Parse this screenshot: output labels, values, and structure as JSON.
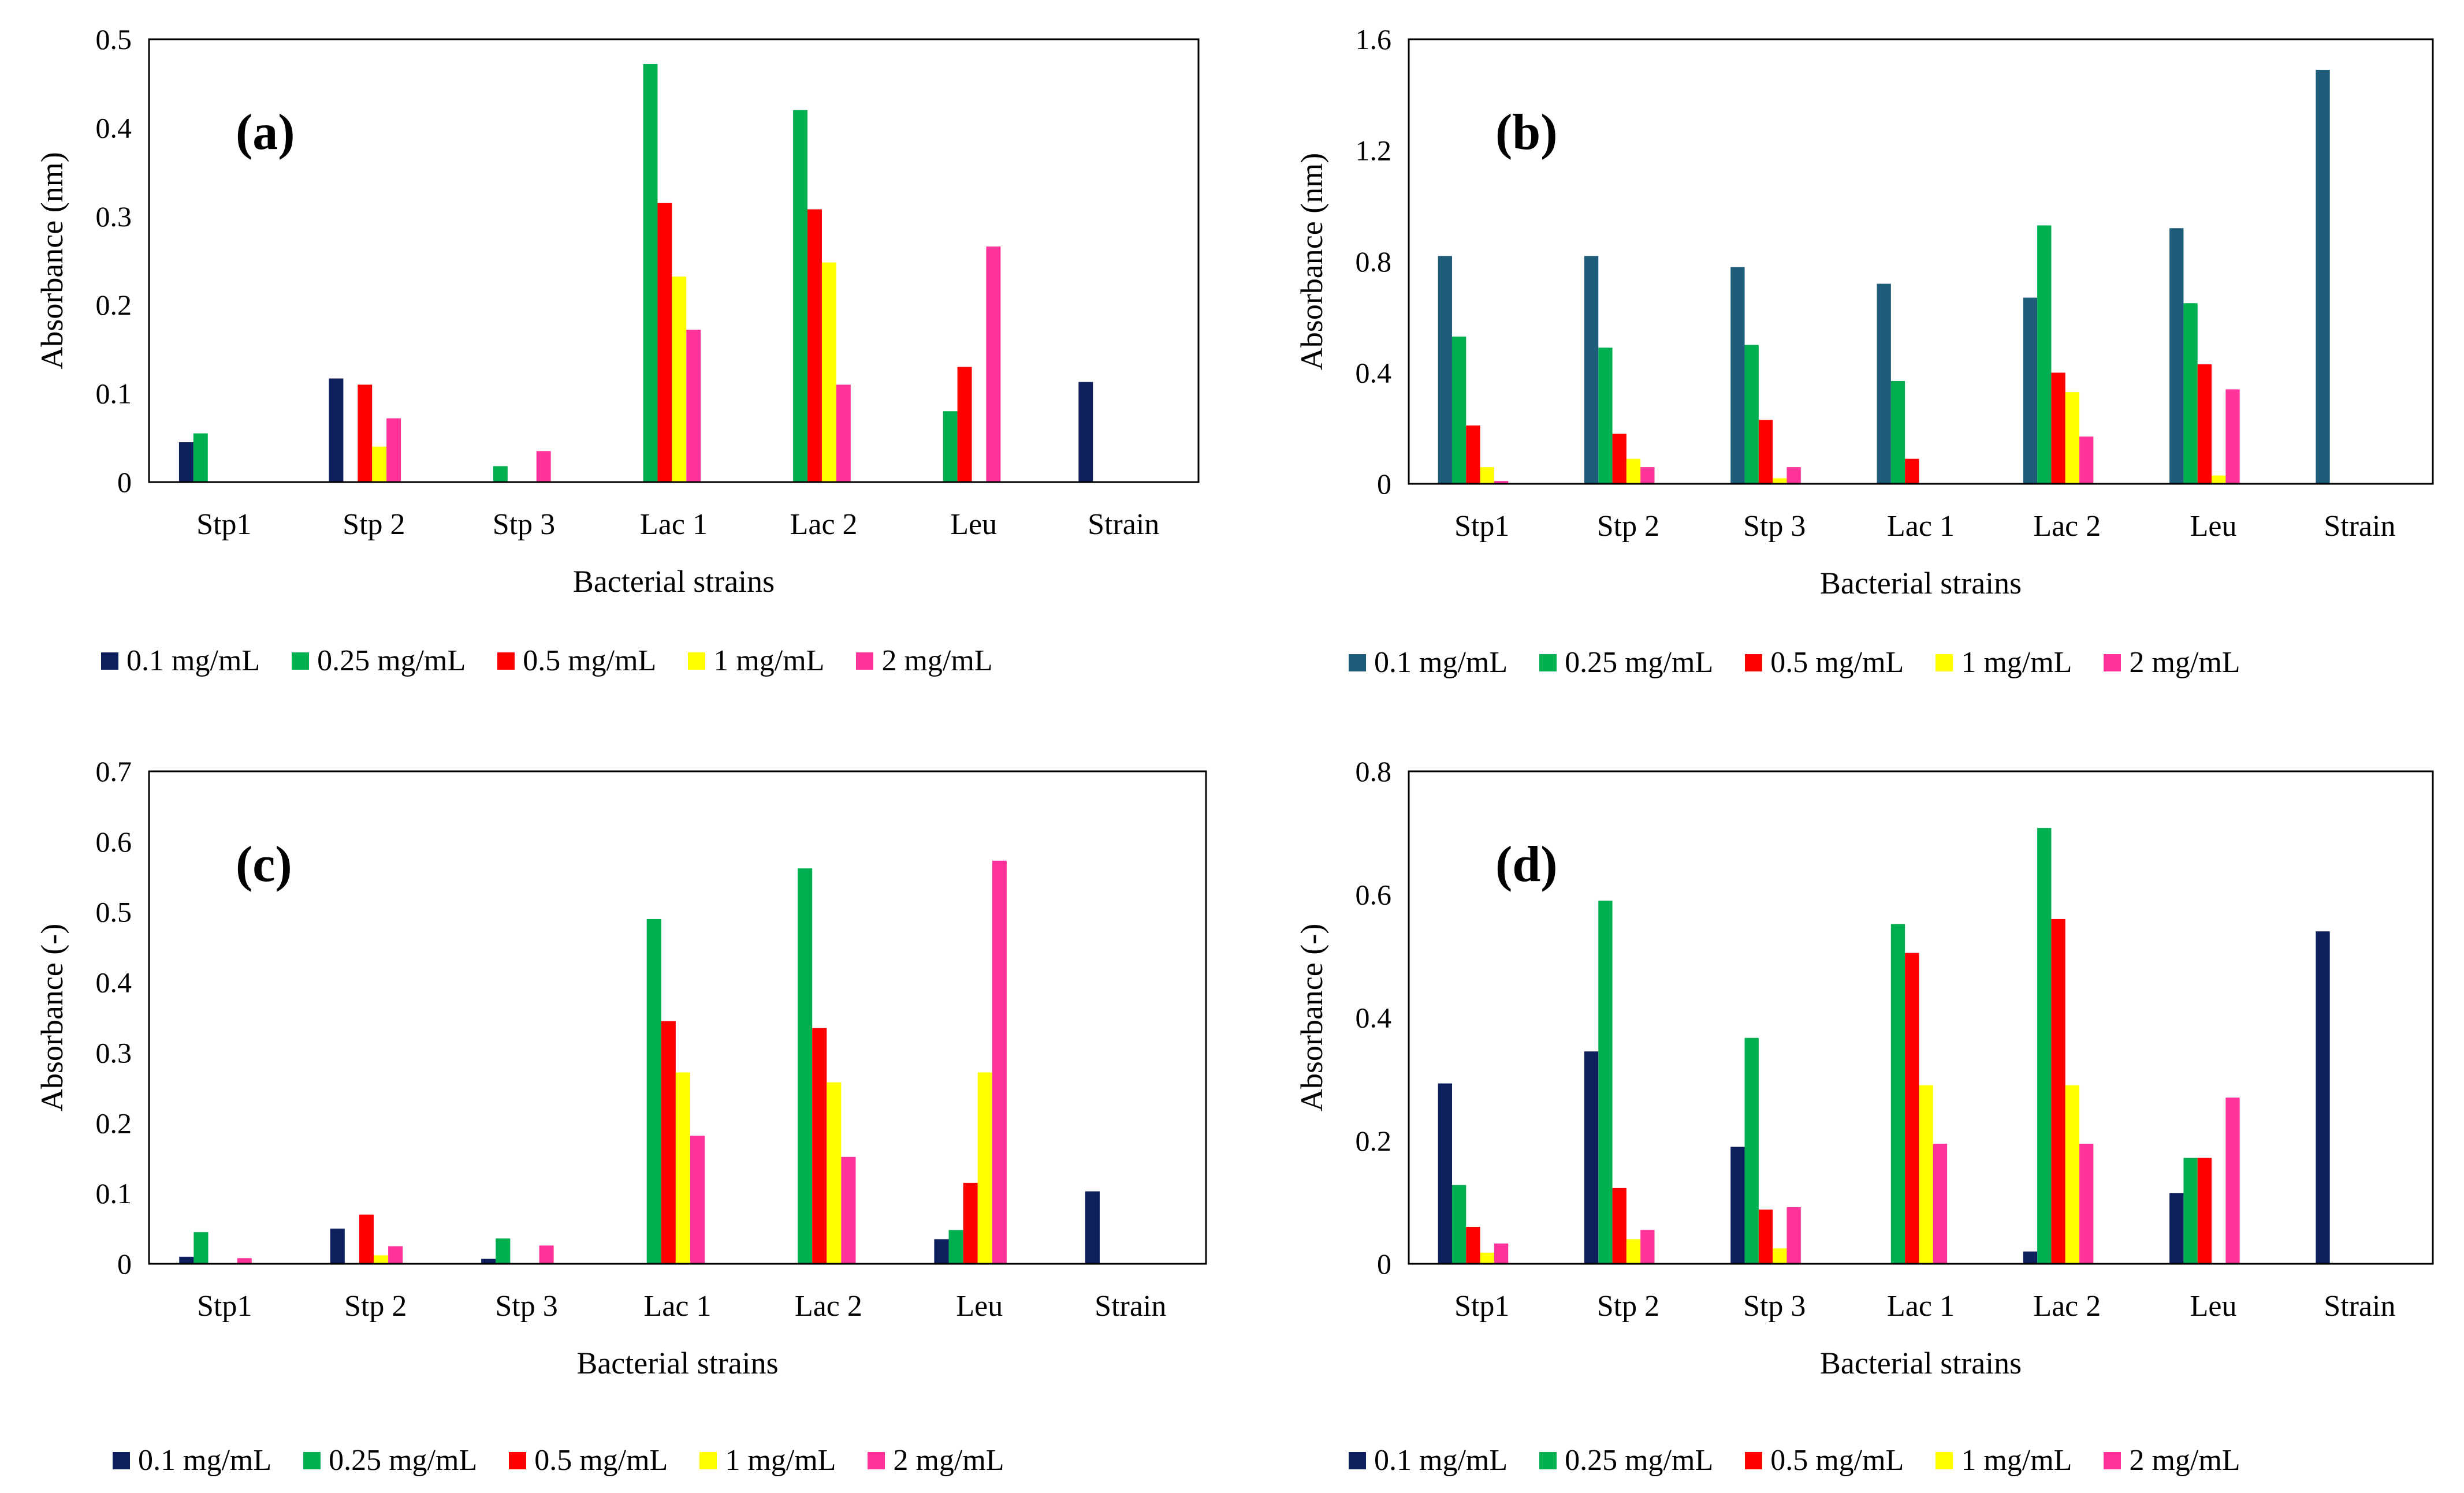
{
  "figure": {
    "chart_data": [
      {
        "id": "a",
        "type": "bar",
        "panel_label": "(a)",
        "xlabel": "Bacterial strains",
        "ylabel": "Absorbance (nm)",
        "ylim": [
          0,
          0.5
        ],
        "yticks": [
          0,
          0.1,
          0.2,
          0.3,
          0.4,
          0.5
        ],
        "ytick_labels": [
          "0",
          "0.1",
          "0.2",
          "0.3",
          "0.4",
          "0.5"
        ],
        "categories": [
          "Stp1",
          "Stp 2",
          "Stp 3",
          "Lac 1",
          "Lac 2",
          "Leu",
          "Strain"
        ],
        "series": [
          {
            "name": "0.1 mg/mL",
            "color": "#0d1f5c",
            "values": [
              0.045,
              0.117,
              0,
              0,
              0,
              0,
              0.113
            ]
          },
          {
            "name": "0.25 mg/mL",
            "color": "#00b050",
            "values": [
              0.055,
              0,
              0.018,
              0.472,
              0.42,
              0.08,
              0
            ]
          },
          {
            "name": "0.5 mg/mL",
            "color": "#ff0000",
            "values": [
              0,
              0.11,
              0,
              0.315,
              0.308,
              0.13,
              0
            ]
          },
          {
            "name": "1 mg/mL",
            "color": "#ffff00",
            "values": [
              0,
              0.04,
              0,
              0.232,
              0.248,
              0,
              0
            ]
          },
          {
            "name": "2 mg/mL",
            "color": "#ff3399",
            "values": [
              0,
              0.072,
              0.035,
              0.172,
              0.11,
              0.266,
              0
            ]
          }
        ]
      },
      {
        "id": "b",
        "type": "bar",
        "panel_label": "(b)",
        "xlabel": "Bacterial strains",
        "ylabel": "Absorbance (nm)",
        "ylim": [
          0,
          1.6
        ],
        "yticks": [
          0,
          0.4,
          0.8,
          1.2,
          1.6
        ],
        "ytick_labels": [
          "0",
          "0.4",
          "0.8",
          "1.2",
          "1.6"
        ],
        "categories": [
          "Stp1",
          "Stp 2",
          "Stp 3",
          "Lac 1",
          "Lac 2",
          "Leu",
          "Strain"
        ],
        "series": [
          {
            "name": "0.1 mg/mL",
            "color": "#1f5c7a",
            "values": [
              0.82,
              0.82,
              0.78,
              0.72,
              0.67,
              0.92,
              1.49
            ]
          },
          {
            "name": "0.25 mg/mL",
            "color": "#00b050",
            "values": [
              0.53,
              0.49,
              0.5,
              0.37,
              0.93,
              0.65,
              0
            ]
          },
          {
            "name": "0.5 mg/mL",
            "color": "#ff0000",
            "values": [
              0.21,
              0.18,
              0.23,
              0.09,
              0.4,
              0.43,
              0
            ]
          },
          {
            "name": "1 mg/mL",
            "color": "#ffff00",
            "values": [
              0.06,
              0.09,
              0.02,
              0,
              0.33,
              0.03,
              0
            ]
          },
          {
            "name": "2 mg/mL",
            "color": "#ff3399",
            "values": [
              0.01,
              0.06,
              0.06,
              0,
              0.17,
              0.34,
              0
            ]
          }
        ]
      },
      {
        "id": "c",
        "type": "bar",
        "panel_label": "(c)",
        "xlabel": "Bacterial strains",
        "ylabel": "Absorbance (-)",
        "ylim": [
          0,
          0.7
        ],
        "yticks": [
          0,
          0.1,
          0.2,
          0.3,
          0.4,
          0.5,
          0.6,
          0.7
        ],
        "ytick_labels": [
          "0",
          "0.1",
          "0.2",
          "0.3",
          "0.4",
          "0.5",
          "0.6",
          "0.7"
        ],
        "categories": [
          "Stp1",
          "Stp 2",
          "Stp 3",
          "Lac 1",
          "Lac 2",
          "Leu",
          "Strain"
        ],
        "series": [
          {
            "name": "0.1 mg/mL",
            "color": "#0d1f5c",
            "values": [
              0.01,
              0.05,
              0.007,
              0,
              0,
              0.035,
              0.103
            ]
          },
          {
            "name": "0.25 mg/mL",
            "color": "#00b050",
            "values": [
              0.045,
              0,
              0.036,
              0.49,
              0.562,
              0.048,
              0
            ]
          },
          {
            "name": "0.5 mg/mL",
            "color": "#ff0000",
            "values": [
              0,
              0.07,
              0,
              0.345,
              0.335,
              0.115,
              0
            ]
          },
          {
            "name": "1 mg/mL",
            "color": "#ffff00",
            "values": [
              0,
              0.012,
              0,
              0.272,
              0.258,
              0.272,
              0
            ]
          },
          {
            "name": "2 mg/mL",
            "color": "#ff3399",
            "values": [
              0.008,
              0.025,
              0.026,
              0.182,
              0.152,
              0.573,
              0
            ]
          }
        ]
      },
      {
        "id": "d",
        "type": "bar",
        "panel_label": "(d)",
        "xlabel": "Bacterial strains",
        "ylabel": "Absorbance (-)",
        "ylim": [
          0,
          0.8
        ],
        "yticks": [
          0,
          0.2,
          0.4,
          0.6,
          0.8
        ],
        "ytick_labels": [
          "0",
          "0.2",
          "0.4",
          "0.6",
          "0.8"
        ],
        "categories": [
          "Stp1",
          "Stp 2",
          "Stp 3",
          "Lac 1",
          "Lac 2",
          "Leu",
          "Strain"
        ],
        "series": [
          {
            "name": "0.1 mg/mL",
            "color": "#0d1f5c",
            "values": [
              0.293,
              0.345,
              0.19,
              0,
              0.02,
              0.115,
              0.54
            ]
          },
          {
            "name": "0.25 mg/mL",
            "color": "#00b050",
            "values": [
              0.128,
              0.59,
              0.367,
              0.552,
              0.708,
              0.172,
              0
            ]
          },
          {
            "name": "0.5 mg/mL",
            "color": "#ff0000",
            "values": [
              0.06,
              0.123,
              0.088,
              0.505,
              0.56,
              0.172,
              0
            ]
          },
          {
            "name": "1 mg/mL",
            "color": "#ffff00",
            "values": [
              0.018,
              0.04,
              0.025,
              0.29,
              0.29,
              0,
              0
            ]
          },
          {
            "name": "2 mg/mL",
            "color": "#ff3399",
            "values": [
              0.033,
              0.055,
              0.092,
              0.195,
              0.195,
              0.27,
              0
            ]
          }
        ]
      }
    ]
  }
}
